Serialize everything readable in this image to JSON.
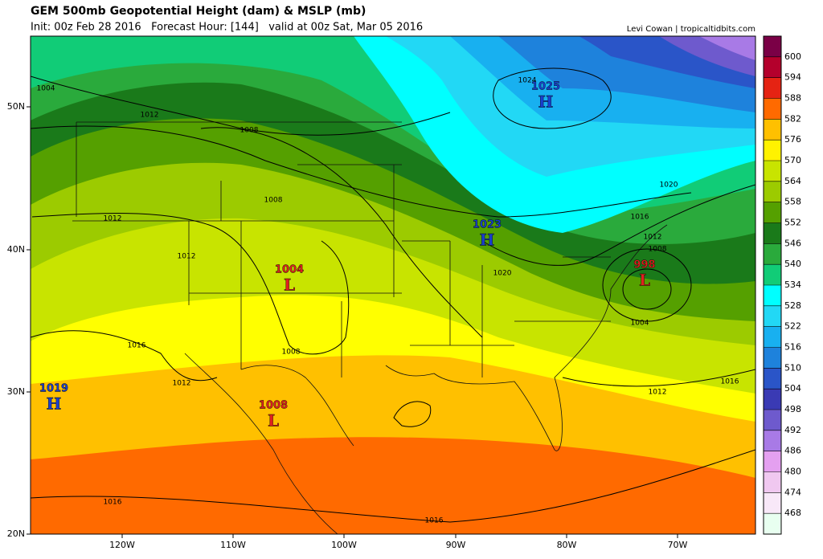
{
  "header": {
    "title": "GEM 500mb Geopotential Height (dam) & MSLP (mb)",
    "subtitle": "Init: 00z Feb 28 2016   Forecast Hour: [144]   valid at 00z Sat, Mar 05 2016",
    "credit": "Levi Cowan | tropicaltidbits.com"
  },
  "map": {
    "lat_labels": [
      "50N",
      "40N",
      "30N",
      "20N"
    ],
    "lon_labels": [
      "120W",
      "110W",
      "100W",
      "90W",
      "80W",
      "70W"
    ],
    "contour_labels": [
      "1004",
      "1012",
      "1008",
      "1012",
      "1008",
      "1012",
      "1016",
      "1008",
      "1012",
      "1016",
      "1016",
      "1024",
      "1020",
      "1016",
      "1012",
      "1008",
      "1020",
      "1004",
      "1012",
      "1016"
    ],
    "centers": [
      {
        "letter": "H",
        "value": "1025"
      },
      {
        "letter": "H",
        "value": "1023"
      },
      {
        "letter": "L",
        "value": "1004"
      },
      {
        "letter": "L",
        "value": "998"
      },
      {
        "letter": "H",
        "value": "1019"
      },
      {
        "letter": "L",
        "value": "1008"
      }
    ]
  },
  "colorbar": {
    "labels": [
      "600",
      "594",
      "588",
      "582",
      "576",
      "570",
      "564",
      "558",
      "552",
      "546",
      "540",
      "534",
      "528",
      "522",
      "516",
      "510",
      "504",
      "498",
      "492",
      "486",
      "480",
      "474",
      "468"
    ]
  }
}
